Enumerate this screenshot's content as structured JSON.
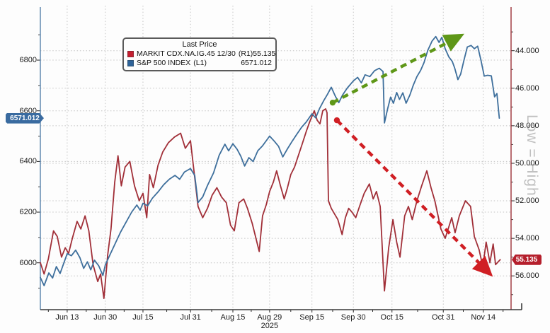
{
  "chart_data": {
    "type": "line",
    "title": "",
    "year_label": "2025",
    "watermark": "Low = High",
    "legend": {
      "title": "Last Price",
      "entries": [
        {
          "label": "MARKIT CDX.NA.IG.45 12/30",
          "axis_tag": "(R1)",
          "value": "55.135",
          "color": "#c41f30"
        },
        {
          "label": "S&P 500 INDEX",
          "axis_tag": "(L1)",
          "value": "6571.012",
          "color": "#2e6399"
        }
      ]
    },
    "x_axis": {
      "ticks": [
        {
          "f": 0.057,
          "label": "Jun 13"
        },
        {
          "f": 0.138,
          "label": "Jun 30"
        },
        {
          "f": 0.218,
          "label": "Jul 15"
        },
        {
          "f": 0.319,
          "label": "Jul 31"
        },
        {
          "f": 0.409,
          "label": "Aug 15"
        },
        {
          "f": 0.487,
          "label": "Aug 29"
        },
        {
          "f": 0.577,
          "label": "Sep 15"
        },
        {
          "f": 0.665,
          "label": "Sep 30"
        },
        {
          "f": 0.747,
          "label": "Oct 15"
        },
        {
          "f": 0.856,
          "label": "Oct 31"
        },
        {
          "f": 0.941,
          "label": "Nov 14"
        }
      ]
    },
    "left_axis": {
      "series": "S&P 500 INDEX",
      "range": [
        5815,
        7015
      ],
      "ticks": [
        {
          "v": 6800,
          "label": "6800"
        },
        {
          "v": 6600,
          "label": "6600"
        },
        {
          "v": 6400,
          "label": "6400"
        },
        {
          "v": 6200,
          "label": "6200"
        },
        {
          "v": 6000,
          "label": "6000"
        }
      ],
      "minor_ticks": [
        6900,
        6700,
        6500,
        6300,
        6100,
        5900
      ],
      "last_badge": "6571.012",
      "last_value": 6571.012,
      "color": "#3a6ba0"
    },
    "right_axis": {
      "series": "MARKIT CDX.NA.IG.45 12/30",
      "inverted": true,
      "range": [
        41.6,
        57.8
      ],
      "ticks": [
        {
          "v": 44,
          "label": "44.000"
        },
        {
          "v": 46,
          "label": "46.000"
        },
        {
          "v": 48,
          "label": "48.000"
        },
        {
          "v": 50,
          "label": "50.000"
        },
        {
          "v": 52,
          "label": "52.000"
        },
        {
          "v": 54,
          "label": "54.000"
        },
        {
          "v": 56,
          "label": "56.000"
        }
      ],
      "minor_ticks": [
        43,
        45,
        47,
        49,
        51,
        53,
        55,
        57
      ],
      "last_badge": "55.135",
      "last_value": 55.135,
      "color": "#b51f2c"
    },
    "series": [
      {
        "name": "MARKIT CDX.NA.IG.45 12/30",
        "axis": "right",
        "color": "#a12f38",
        "points": [
          [
            0.0,
            55.3
          ],
          [
            0.008,
            55.9
          ],
          [
            0.017,
            55.1
          ],
          [
            0.028,
            53.6
          ],
          [
            0.036,
            53.9
          ],
          [
            0.045,
            55.0
          ],
          [
            0.053,
            54.5
          ],
          [
            0.06,
            54.8
          ],
          [
            0.068,
            54.0
          ],
          [
            0.078,
            53.1
          ],
          [
            0.086,
            53.5
          ],
          [
            0.095,
            52.8
          ],
          [
            0.103,
            53.6
          ],
          [
            0.112,
            55.4
          ],
          [
            0.122,
            56.3
          ],
          [
            0.128,
            55.9
          ],
          [
            0.135,
            57.2
          ],
          [
            0.143,
            54.9
          ],
          [
            0.15,
            53.5
          ],
          [
            0.158,
            51.0
          ],
          [
            0.165,
            49.6
          ],
          [
            0.172,
            51.2
          ],
          [
            0.18,
            50.2
          ],
          [
            0.19,
            49.9
          ],
          [
            0.2,
            51.2
          ],
          [
            0.21,
            52.0
          ],
          [
            0.218,
            51.6
          ],
          [
            0.226,
            52.9
          ],
          [
            0.232,
            50.6
          ],
          [
            0.24,
            51.3
          ],
          [
            0.25,
            50.1
          ],
          [
            0.26,
            49.4
          ],
          [
            0.272,
            48.9
          ],
          [
            0.285,
            48.6
          ],
          [
            0.298,
            48.4
          ],
          [
            0.308,
            49.2
          ],
          [
            0.319,
            48.8
          ],
          [
            0.335,
            52.3
          ],
          [
            0.345,
            52.9
          ],
          [
            0.355,
            52.4
          ],
          [
            0.365,
            51.7
          ],
          [
            0.375,
            51.3
          ],
          [
            0.385,
            51.8
          ],
          [
            0.395,
            52.1
          ],
          [
            0.404,
            53.3
          ],
          [
            0.412,
            53.6
          ],
          [
            0.422,
            52.1
          ],
          [
            0.432,
            51.9
          ],
          [
            0.44,
            52.4
          ],
          [
            0.45,
            53.2
          ],
          [
            0.458,
            54.0
          ],
          [
            0.465,
            54.7
          ],
          [
            0.472,
            52.8
          ],
          [
            0.48,
            52.2
          ],
          [
            0.487,
            51.5
          ],
          [
            0.495,
            51.0
          ],
          [
            0.502,
            50.4
          ],
          [
            0.51,
            51.2
          ],
          [
            0.518,
            51.9
          ],
          [
            0.525,
            51.3
          ],
          [
            0.532,
            50.6
          ],
          [
            0.54,
            50.2
          ],
          [
            0.548,
            49.6
          ],
          [
            0.556,
            49.0
          ],
          [
            0.565,
            48.3
          ],
          [
            0.572,
            47.8
          ],
          [
            0.577,
            47.5
          ],
          [
            0.582,
            47.2
          ],
          [
            0.588,
            47.7
          ],
          [
            0.594,
            47.9
          ],
          [
            0.6,
            47.2
          ],
          [
            0.606,
            47.1
          ],
          [
            0.609,
            47.3
          ],
          [
            0.612,
            52.0
          ],
          [
            0.618,
            52.4
          ],
          [
            0.625,
            52.7
          ],
          [
            0.632,
            53.0
          ],
          [
            0.641,
            53.8
          ],
          [
            0.648,
            52.9
          ],
          [
            0.655,
            52.4
          ],
          [
            0.662,
            52.6
          ],
          [
            0.67,
            52.9
          ],
          [
            0.678,
            52.3
          ],
          [
            0.688,
            51.6
          ],
          [
            0.699,
            51.1
          ],
          [
            0.707,
            51.9
          ],
          [
            0.714,
            51.5
          ],
          [
            0.722,
            52.3
          ],
          [
            0.731,
            56.8
          ],
          [
            0.74,
            54.5
          ],
          [
            0.749,
            53.0
          ],
          [
            0.757,
            54.2
          ],
          [
            0.764,
            55.0
          ],
          [
            0.774,
            52.8
          ],
          [
            0.782,
            52.3
          ],
          [
            0.79,
            53.0
          ],
          [
            0.8,
            52.0
          ],
          [
            0.81,
            51.2
          ],
          [
            0.821,
            50.4
          ],
          [
            0.83,
            51.3
          ],
          [
            0.838,
            52.0
          ],
          [
            0.851,
            53.5
          ],
          [
            0.86,
            54.0
          ],
          [
            0.874,
            52.9
          ],
          [
            0.881,
            53.7
          ],
          [
            0.89,
            52.8
          ],
          [
            0.903,
            52.0
          ],
          [
            0.914,
            52.3
          ],
          [
            0.922,
            53.9
          ],
          [
            0.932,
            54.6
          ],
          [
            0.94,
            55.5
          ],
          [
            0.947,
            54.2
          ],
          [
            0.955,
            55.3
          ],
          [
            0.962,
            54.3
          ],
          [
            0.967,
            55.4
          ],
          [
            0.977,
            55.135
          ]
        ]
      },
      {
        "name": "S&P 500 INDEX",
        "axis": "left",
        "color": "#3e6f9c",
        "points": [
          [
            0.0,
            5942
          ],
          [
            0.008,
            5910
          ],
          [
            0.018,
            5960
          ],
          [
            0.026,
            5940
          ],
          [
            0.034,
            5985
          ],
          [
            0.042,
            5958
          ],
          [
            0.05,
            6000
          ],
          [
            0.057,
            6036
          ],
          [
            0.066,
            6028
          ],
          [
            0.075,
            6050
          ],
          [
            0.084,
            6020
          ],
          [
            0.092,
            5978
          ],
          [
            0.1,
            6004
          ],
          [
            0.107,
            5972
          ],
          [
            0.115,
            6010
          ],
          [
            0.124,
            5988
          ],
          [
            0.133,
            5950
          ],
          [
            0.138,
            5992
          ],
          [
            0.148,
            6032
          ],
          [
            0.158,
            6072
          ],
          [
            0.17,
            6120
          ],
          [
            0.182,
            6160
          ],
          [
            0.194,
            6200
          ],
          [
            0.205,
            6228
          ],
          [
            0.212,
            6208
          ],
          [
            0.218,
            6235
          ],
          [
            0.228,
            6225
          ],
          [
            0.238,
            6255
          ],
          [
            0.25,
            6280
          ],
          [
            0.262,
            6308
          ],
          [
            0.274,
            6330
          ],
          [
            0.286,
            6345
          ],
          [
            0.296,
            6330
          ],
          [
            0.306,
            6358
          ],
          [
            0.319,
            6372
          ],
          [
            0.328,
            6345
          ],
          [
            0.335,
            6238
          ],
          [
            0.345,
            6260
          ],
          [
            0.355,
            6305
          ],
          [
            0.368,
            6355
          ],
          [
            0.38,
            6425
          ],
          [
            0.392,
            6468
          ],
          [
            0.4,
            6442
          ],
          [
            0.409,
            6470
          ],
          [
            0.418,
            6448
          ],
          [
            0.426,
            6420
          ],
          [
            0.434,
            6382
          ],
          [
            0.443,
            6415
          ],
          [
            0.452,
            6400
          ],
          [
            0.462,
            6442
          ],
          [
            0.472,
            6462
          ],
          [
            0.48,
            6482
          ],
          [
            0.487,
            6500
          ],
          [
            0.497,
            6480
          ],
          [
            0.506,
            6460
          ],
          [
            0.515,
            6418
          ],
          [
            0.525,
            6450
          ],
          [
            0.535,
            6480
          ],
          [
            0.545,
            6508
          ],
          [
            0.555,
            6535
          ],
          [
            0.565,
            6556
          ],
          [
            0.577,
            6588
          ],
          [
            0.585,
            6572
          ],
          [
            0.593,
            6608
          ],
          [
            0.602,
            6640
          ],
          [
            0.61,
            6665
          ],
          [
            0.618,
            6693
          ],
          [
            0.627,
            6656
          ],
          [
            0.634,
            6632
          ],
          [
            0.642,
            6662
          ],
          [
            0.652,
            6690
          ],
          [
            0.665,
            6718
          ],
          [
            0.674,
            6732
          ],
          [
            0.682,
            6710
          ],
          [
            0.69,
            6742
          ],
          [
            0.7,
            6735
          ],
          [
            0.71,
            6758
          ],
          [
            0.72,
            6768
          ],
          [
            0.728,
            6755
          ],
          [
            0.731,
            6552
          ],
          [
            0.738,
            6610
          ],
          [
            0.744,
            6654
          ],
          [
            0.75,
            6630
          ],
          [
            0.757,
            6672
          ],
          [
            0.763,
            6645
          ],
          [
            0.77,
            6671
          ],
          [
            0.777,
            6630
          ],
          [
            0.785,
            6662
          ],
          [
            0.792,
            6700
          ],
          [
            0.8,
            6735
          ],
          [
            0.808,
            6760
          ],
          [
            0.815,
            6790
          ],
          [
            0.823,
            6838
          ],
          [
            0.832,
            6875
          ],
          [
            0.84,
            6893
          ],
          [
            0.847,
            6870
          ],
          [
            0.853,
            6890
          ],
          [
            0.86,
            6845
          ],
          [
            0.868,
            6812
          ],
          [
            0.875,
            6795
          ],
          [
            0.88,
            6770
          ],
          [
            0.887,
            6723
          ],
          [
            0.893,
            6745
          ],
          [
            0.9,
            6800
          ],
          [
            0.907,
            6852
          ],
          [
            0.915,
            6858
          ],
          [
            0.922,
            6845
          ],
          [
            0.929,
            6855
          ],
          [
            0.936,
            6800
          ],
          [
            0.943,
            6737
          ],
          [
            0.95,
            6740
          ],
          [
            0.958,
            6738
          ],
          [
            0.965,
            6655
          ],
          [
            0.97,
            6668
          ],
          [
            0.975,
            6571
          ]
        ]
      }
    ],
    "annotations": [
      {
        "type": "arrow",
        "name": "uptrend-arrow",
        "color": "#5f9718",
        "from": [
          0.621,
          0.319
        ],
        "to": [
          0.889,
          0.102
        ]
      },
      {
        "type": "arrow",
        "name": "downtrend-arrow",
        "color": "#d01f24",
        "from": [
          0.63,
          0.377
        ],
        "to": [
          0.952,
          0.877
        ]
      }
    ],
    "style": {
      "gridline_color": "#c4c4c4",
      "bottom_spine_color": "#3a3a3a",
      "background": "#fdfdfd"
    }
  }
}
